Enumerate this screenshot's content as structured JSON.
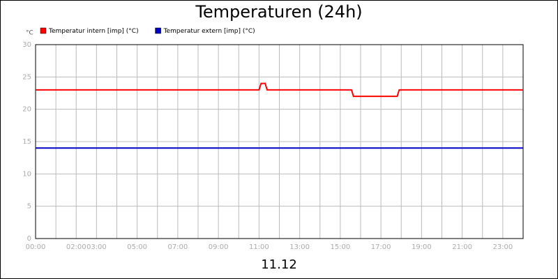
{
  "chart_data": {
    "type": "line",
    "title": "Temperaturen (24h)",
    "ylabel": "°C",
    "xlabel": "11.12",
    "series": [
      {
        "name": "Temperatur intern [imp] (°C)",
        "color": "#ff0000",
        "x": [
          0,
          11.0,
          11.1,
          11.3,
          11.4,
          15.55,
          15.65,
          17.8,
          17.9,
          24
        ],
        "values": [
          23,
          23,
          24,
          24,
          23,
          23,
          22,
          22,
          23,
          23
        ]
      },
      {
        "name": "Temperatur extern [imp] (°C)",
        "color": "#0000cc",
        "x": [
          0,
          24
        ],
        "values": [
          14,
          14
        ]
      }
    ],
    "xlim": [
      0,
      24
    ],
    "xticks": [
      {
        "value": 0,
        "label": "00:00"
      },
      {
        "value": 2,
        "label": "02:00"
      },
      {
        "value": 3,
        "label": "03:00"
      },
      {
        "value": 5,
        "label": "05:00"
      },
      {
        "value": 7,
        "label": "07:00"
      },
      {
        "value": 9,
        "label": "09:00"
      },
      {
        "value": 11,
        "label": "11:00"
      },
      {
        "value": 13,
        "label": "13:00"
      },
      {
        "value": 15,
        "label": "15:00"
      },
      {
        "value": 17,
        "label": "17:00"
      },
      {
        "value": 19,
        "label": "19:00"
      },
      {
        "value": 21,
        "label": "21:00"
      },
      {
        "value": 23,
        "label": "23:00"
      }
    ],
    "minor_xticks": [
      1,
      4,
      6,
      8,
      10,
      12,
      14,
      16,
      18,
      20,
      22
    ],
    "ylim": [
      0,
      30
    ],
    "yticks": [
      0,
      5,
      10,
      15,
      20,
      25,
      30
    ],
    "grid": true
  }
}
